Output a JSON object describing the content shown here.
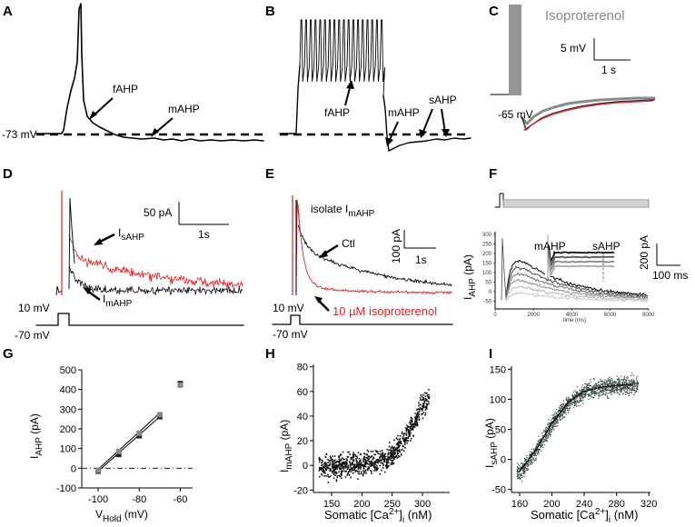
{
  "figure": {
    "panels": {
      "A": {
        "label": "A",
        "baseline": "-73 mV",
        "annotations": [
          "fAHP",
          "mAHP"
        ]
      },
      "B": {
        "label": "B",
        "annotations": [
          "fAHP",
          "mAHP",
          "sAHP"
        ]
      },
      "C": {
        "label": "C",
        "title": "Isoproterenol",
        "baseline": "-65 mV",
        "scale_y": "5 mV",
        "scale_x": "1 s"
      },
      "D": {
        "label": "D",
        "scale_y": "50 pA",
        "scale_x": "1s",
        "sahp_label": "I",
        "sahp_sub": "sAHP",
        "mahp_label": "I",
        "mahp_sub": "mAHP",
        "step_top": "10 mV",
        "step_bottom": "-70 mV"
      },
      "E": {
        "label": "E",
        "title_main": "isolate I",
        "title_sub": "mAHP",
        "ctl": "Ctl",
        "drug": "10 µM isoproterenol",
        "scale_y": "100 pA",
        "scale_x": "1s",
        "step_top": "10 mV",
        "step_bottom": "-70 mV"
      },
      "F": {
        "label": "F",
        "mahp": "mAHP",
        "sahp": "sAHP",
        "ylabel_main": "I",
        "ylabel_sub": "AHP",
        "ylabel_unit": " (pA)",
        "scale_y": "200 pA",
        "scale_x": "100 ms",
        "xlabel": "time (ms)",
        "yticks": [
          "300",
          "250",
          "200",
          "150",
          "100",
          "50",
          "0",
          "-50"
        ],
        "xticks": [
          "0",
          "2000",
          "4000",
          "6000",
          "8000"
        ],
        "inset_yticks": [
          "200",
          "150",
          "100",
          "50",
          "0",
          "-50"
        ],
        "inset_xticks": [
          "2000",
          "4000",
          "6000"
        ]
      },
      "G": {
        "label": "G"
      },
      "H": {
        "label": "H"
      },
      "I": {
        "label": "I"
      }
    }
  },
  "chart_data": [
    {
      "type": "scatter",
      "panel": "G",
      "title": "",
      "xlabel": "V",
      "xlabel_sub": "Hold",
      "xlabel_unit": " (mV)",
      "ylabel": "I",
      "ylabel_sub": "AHP",
      "ylabel_unit": " (pA)",
      "xlim": [
        -108,
        -54
      ],
      "ylim": [
        -100,
        500
      ],
      "xticks": [
        "-100",
        "-80",
        "-60"
      ],
      "xtick_values": [
        -100,
        -80,
        -60
      ],
      "yticks": [
        "500",
        "400",
        "300",
        "200",
        "100",
        "0",
        "-100"
      ],
      "ytick_values": [
        500,
        400,
        300,
        200,
        100,
        0,
        -100
      ],
      "series": [
        {
          "name": "control",
          "x": [
            -100,
            -90,
            -80,
            -70,
            -60
          ],
          "y": [
            -15,
            70,
            165,
            262,
            430
          ]
        },
        {
          "name": "drug",
          "x": [
            -100,
            -90,
            -80,
            -70,
            -60
          ],
          "y": [
            -10,
            85,
            178,
            272,
            422
          ]
        }
      ],
      "fit_lines": [
        {
          "x": [
            -100,
            -70
          ],
          "y": [
            -15,
            262
          ]
        },
        {
          "x": [
            -100,
            -70
          ],
          "y": [
            -5,
            280
          ]
        }
      ],
      "reference_line": 0
    },
    {
      "type": "scatter",
      "panel": "H",
      "xlabel": "Somatic [Ca",
      "xlabel_sup": "2+",
      "xlabel_tail": "]",
      "xlabel_sub": "i",
      "xlabel_unit": " (nM)",
      "ylabel": "I",
      "ylabel_sub": "mAHP",
      "ylabel_unit": " (pA)",
      "xlim": [
        120,
        345
      ],
      "ylim": [
        -22,
        82
      ],
      "xticks": [
        "150",
        "200",
        "250",
        "300"
      ],
      "xtick_values": [
        150,
        200,
        250,
        300
      ],
      "yticks": [
        "80",
        "60",
        "40",
        "20",
        "0",
        "-20"
      ],
      "ytick_values": [
        80,
        60,
        40,
        20,
        0,
        -20
      ],
      "trend_x": [
        130,
        160,
        200,
        240,
        260,
        280,
        300,
        310
      ],
      "trend_y": [
        -2,
        0,
        2,
        5,
        15,
        30,
        50,
        55
      ]
    },
    {
      "type": "scatter",
      "panel": "I",
      "xlabel": "Somatic [Ca",
      "xlabel_sup": "2+",
      "xlabel_tail": "]",
      "xlabel_sub": "i",
      "xlabel_unit": " (nM)",
      "ylabel": "I",
      "ylabel_sub": "sAHP",
      "ylabel_unit": " (pA)",
      "xlim": [
        150,
        322
      ],
      "ylim": [
        -55,
        155
      ],
      "xticks": [
        "160",
        "200",
        "240",
        "280",
        "320"
      ],
      "xtick_values": [
        160,
        200,
        240,
        280,
        320
      ],
      "yticks": [
        "150",
        "100",
        "50",
        "0",
        "-50"
      ],
      "ytick_values": [
        150,
        100,
        50,
        0,
        -50
      ],
      "fit_x": [
        160,
        180,
        200,
        220,
        240,
        260,
        280,
        300
      ],
      "fit_y": [
        -20,
        15,
        60,
        95,
        113,
        120,
        123,
        125
      ]
    }
  ]
}
